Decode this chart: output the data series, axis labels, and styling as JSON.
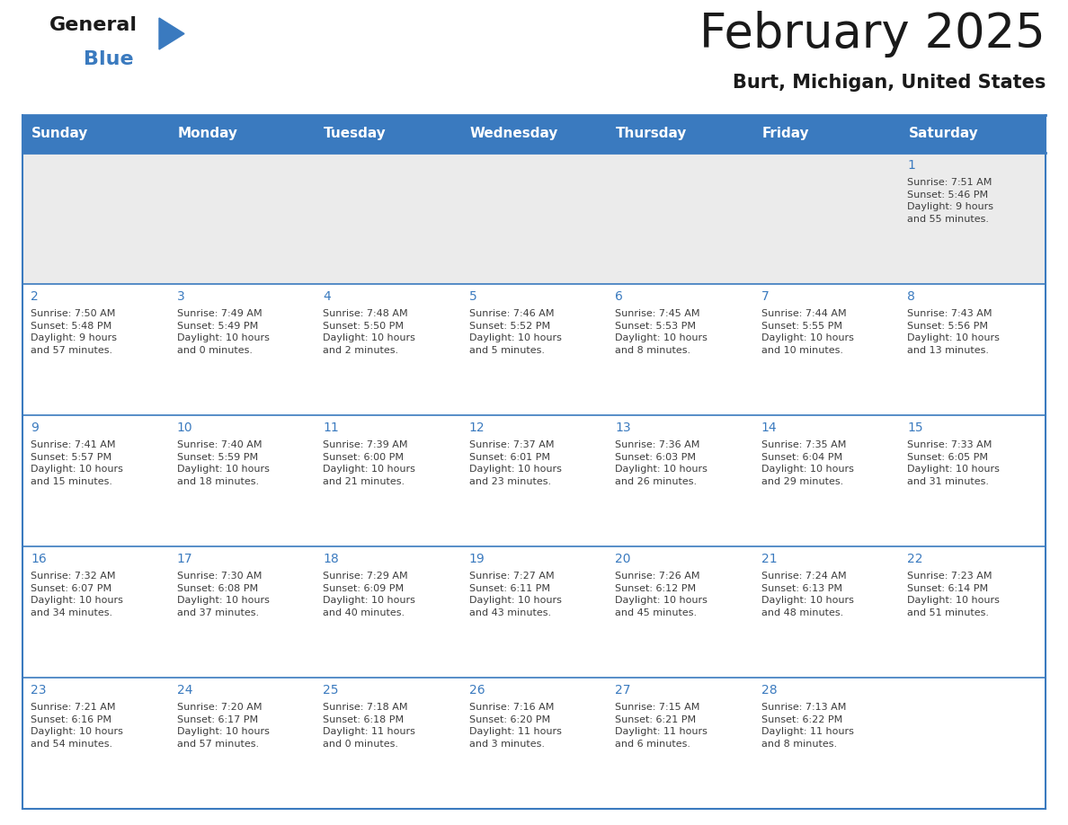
{
  "title": "February 2025",
  "subtitle": "Burt, Michigan, United States",
  "header_color": "#3a7abf",
  "header_text_color": "#ffffff",
  "cell_bg_week0": "#ebebeb",
  "cell_bg_week1": "#ffffff",
  "cell_bg_week2": "#ffffff",
  "cell_bg_week3": "#ffffff",
  "cell_bg_week4": "#ffffff",
  "border_color": "#3a7abf",
  "separator_color": "#3a7abf",
  "day_names": [
    "Sunday",
    "Monday",
    "Tuesday",
    "Wednesday",
    "Thursday",
    "Friday",
    "Saturday"
  ],
  "weeks": [
    [
      {
        "day": "",
        "info": ""
      },
      {
        "day": "",
        "info": ""
      },
      {
        "day": "",
        "info": ""
      },
      {
        "day": "",
        "info": ""
      },
      {
        "day": "",
        "info": ""
      },
      {
        "day": "",
        "info": ""
      },
      {
        "day": "1",
        "info": "Sunrise: 7:51 AM\nSunset: 5:46 PM\nDaylight: 9 hours\nand 55 minutes."
      }
    ],
    [
      {
        "day": "2",
        "info": "Sunrise: 7:50 AM\nSunset: 5:48 PM\nDaylight: 9 hours\nand 57 minutes."
      },
      {
        "day": "3",
        "info": "Sunrise: 7:49 AM\nSunset: 5:49 PM\nDaylight: 10 hours\nand 0 minutes."
      },
      {
        "day": "4",
        "info": "Sunrise: 7:48 AM\nSunset: 5:50 PM\nDaylight: 10 hours\nand 2 minutes."
      },
      {
        "day": "5",
        "info": "Sunrise: 7:46 AM\nSunset: 5:52 PM\nDaylight: 10 hours\nand 5 minutes."
      },
      {
        "day": "6",
        "info": "Sunrise: 7:45 AM\nSunset: 5:53 PM\nDaylight: 10 hours\nand 8 minutes."
      },
      {
        "day": "7",
        "info": "Sunrise: 7:44 AM\nSunset: 5:55 PM\nDaylight: 10 hours\nand 10 minutes."
      },
      {
        "day": "8",
        "info": "Sunrise: 7:43 AM\nSunset: 5:56 PM\nDaylight: 10 hours\nand 13 minutes."
      }
    ],
    [
      {
        "day": "9",
        "info": "Sunrise: 7:41 AM\nSunset: 5:57 PM\nDaylight: 10 hours\nand 15 minutes."
      },
      {
        "day": "10",
        "info": "Sunrise: 7:40 AM\nSunset: 5:59 PM\nDaylight: 10 hours\nand 18 minutes."
      },
      {
        "day": "11",
        "info": "Sunrise: 7:39 AM\nSunset: 6:00 PM\nDaylight: 10 hours\nand 21 minutes."
      },
      {
        "day": "12",
        "info": "Sunrise: 7:37 AM\nSunset: 6:01 PM\nDaylight: 10 hours\nand 23 minutes."
      },
      {
        "day": "13",
        "info": "Sunrise: 7:36 AM\nSunset: 6:03 PM\nDaylight: 10 hours\nand 26 minutes."
      },
      {
        "day": "14",
        "info": "Sunrise: 7:35 AM\nSunset: 6:04 PM\nDaylight: 10 hours\nand 29 minutes."
      },
      {
        "day": "15",
        "info": "Sunrise: 7:33 AM\nSunset: 6:05 PM\nDaylight: 10 hours\nand 31 minutes."
      }
    ],
    [
      {
        "day": "16",
        "info": "Sunrise: 7:32 AM\nSunset: 6:07 PM\nDaylight: 10 hours\nand 34 minutes."
      },
      {
        "day": "17",
        "info": "Sunrise: 7:30 AM\nSunset: 6:08 PM\nDaylight: 10 hours\nand 37 minutes."
      },
      {
        "day": "18",
        "info": "Sunrise: 7:29 AM\nSunset: 6:09 PM\nDaylight: 10 hours\nand 40 minutes."
      },
      {
        "day": "19",
        "info": "Sunrise: 7:27 AM\nSunset: 6:11 PM\nDaylight: 10 hours\nand 43 minutes."
      },
      {
        "day": "20",
        "info": "Sunrise: 7:26 AM\nSunset: 6:12 PM\nDaylight: 10 hours\nand 45 minutes."
      },
      {
        "day": "21",
        "info": "Sunrise: 7:24 AM\nSunset: 6:13 PM\nDaylight: 10 hours\nand 48 minutes."
      },
      {
        "day": "22",
        "info": "Sunrise: 7:23 AM\nSunset: 6:14 PM\nDaylight: 10 hours\nand 51 minutes."
      }
    ],
    [
      {
        "day": "23",
        "info": "Sunrise: 7:21 AM\nSunset: 6:16 PM\nDaylight: 10 hours\nand 54 minutes."
      },
      {
        "day": "24",
        "info": "Sunrise: 7:20 AM\nSunset: 6:17 PM\nDaylight: 10 hours\nand 57 minutes."
      },
      {
        "day": "25",
        "info": "Sunrise: 7:18 AM\nSunset: 6:18 PM\nDaylight: 11 hours\nand 0 minutes."
      },
      {
        "day": "26",
        "info": "Sunrise: 7:16 AM\nSunset: 6:20 PM\nDaylight: 11 hours\nand 3 minutes."
      },
      {
        "day": "27",
        "info": "Sunrise: 7:15 AM\nSunset: 6:21 PM\nDaylight: 11 hours\nand 6 minutes."
      },
      {
        "day": "28",
        "info": "Sunrise: 7:13 AM\nSunset: 6:22 PM\nDaylight: 11 hours\nand 8 minutes."
      },
      {
        "day": "",
        "info": ""
      }
    ]
  ],
  "text_color": "#1a1a1a",
  "day_number_color": "#3a7abf",
  "info_text_color": "#3d3d3d",
  "logo_general_color": "#1a1a1a",
  "logo_blue_color": "#3a7abf",
  "title_fontsize": 38,
  "subtitle_fontsize": 15,
  "header_fontsize": 11,
  "day_num_fontsize": 10,
  "info_fontsize": 8,
  "fig_width": 11.88,
  "fig_height": 9.18,
  "fig_dpi": 100
}
